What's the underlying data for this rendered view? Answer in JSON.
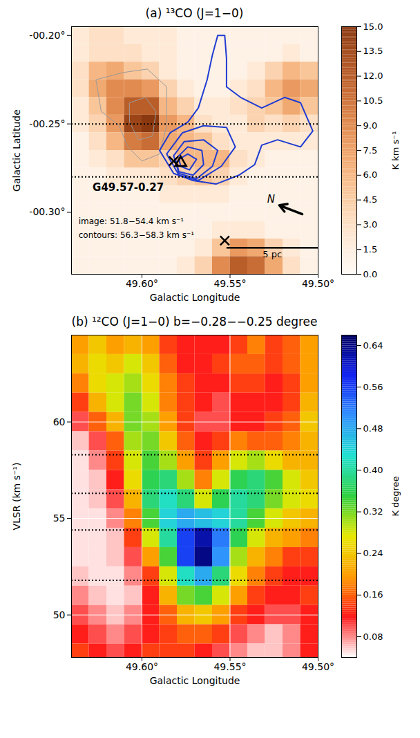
{
  "chart_data": [
    {
      "type": "heatmap",
      "title": "(a) ¹³CO (J=1−0)",
      "x_label": "Galactic Longitude",
      "y_label": "Galactic Latitude",
      "xlim": [
        49.64,
        49.5
      ],
      "xticks": [
        {
          "value": 49.6,
          "label": "49.60°"
        },
        {
          "value": 49.55,
          "label": "49.55°"
        },
        {
          "value": 49.5,
          "label": "49.50°"
        }
      ],
      "ylim": [
        -0.335,
        -0.195
      ],
      "yticks": [
        {
          "value": -0.2,
          "label": "-00.20°"
        },
        {
          "value": -0.25,
          "label": "-00.25°"
        },
        {
          "value": -0.3,
          "label": "-00.30°"
        }
      ],
      "cells": {
        "x": [
          49.635,
          49.625,
          49.615,
          49.605,
          49.595,
          49.585,
          49.575,
          49.565,
          49.555,
          49.545,
          49.535,
          49.525,
          49.515,
          49.505
        ],
        "y": [
          -0.2,
          -0.21,
          -0.22,
          -0.23,
          -0.24,
          -0.25,
          -0.26,
          -0.27,
          -0.28,
          -0.29,
          -0.3,
          -0.31,
          -0.32,
          -0.33
        ],
        "values": [
          [
            2,
            3,
            3,
            2,
            2,
            2,
            1,
            1,
            1,
            1,
            1,
            1,
            1,
            1
          ],
          [
            2,
            3,
            3,
            3,
            2,
            2,
            1,
            1,
            1,
            1,
            1,
            1,
            2,
            1
          ],
          [
            3,
            6,
            7,
            5,
            4,
            2,
            1,
            1,
            1,
            1,
            2,
            4,
            6,
            5
          ],
          [
            3,
            7,
            9,
            9,
            8,
            4,
            2,
            1,
            1,
            2,
            3,
            6,
            8,
            7
          ],
          [
            2,
            5,
            9,
            12,
            12,
            6,
            4,
            2,
            2,
            3,
            4,
            5,
            7,
            5
          ],
          [
            2,
            4,
            8,
            14,
            15,
            8,
            6,
            3,
            2,
            2,
            4,
            3,
            4,
            3
          ],
          [
            1,
            3,
            6,
            10,
            11,
            7,
            6,
            5,
            3,
            2,
            2,
            2,
            2,
            2
          ],
          [
            1,
            2,
            3,
            5,
            5,
            4,
            6,
            6,
            6,
            3,
            2,
            1,
            1,
            1
          ],
          [
            1,
            1,
            2,
            2,
            2,
            3,
            4,
            5,
            4,
            2,
            1,
            1,
            1,
            1
          ],
          [
            1,
            1,
            1,
            1,
            1,
            2,
            2,
            2,
            2,
            1,
            1,
            1,
            1,
            1
          ],
          [
            1,
            1,
            1,
            1,
            1,
            1,
            1,
            1,
            1,
            1,
            1,
            1,
            1,
            1
          ],
          [
            1,
            1,
            1,
            1,
            1,
            1,
            1,
            1,
            2,
            2,
            2,
            1,
            1,
            1
          ],
          [
            1,
            1,
            1,
            1,
            1,
            1,
            1,
            2,
            5,
            8,
            7,
            4,
            2,
            1
          ],
          [
            1,
            1,
            1,
            1,
            1,
            1,
            2,
            4,
            9,
            12,
            11,
            7,
            3,
            1
          ]
        ]
      },
      "colorbar": {
        "label": "K km s⁻¹",
        "lim": [
          0,
          15
        ],
        "ticks": [
          {
            "value": 0,
            "label": "0.0"
          },
          1.5,
          {
            "value": 3,
            "label": "3.0"
          },
          4.5,
          {
            "value": 6,
            "label": "6.0"
          },
          7.5,
          {
            "value": 9,
            "label": "9.0"
          },
          10.5,
          {
            "value": 12,
            "label": "12.0"
          },
          13.5,
          {
            "value": 15,
            "label": "15.0"
          }
        ]
      },
      "cell_contours": {
        "color": "#9a9a9a",
        "lines": [
          [
            [
              49.626,
              -0.225
            ],
            [
              49.611,
              -0.221
            ],
            [
              49.597,
              -0.219
            ],
            [
              49.586,
              -0.229
            ],
            [
              49.586,
              -0.251
            ],
            [
              49.59,
              -0.267
            ],
            [
              49.6,
              -0.271
            ],
            [
              49.608,
              -0.263
            ],
            [
              49.613,
              -0.251
            ],
            [
              49.623,
              -0.243
            ]
          ],
          [
            [
              49.607,
              -0.238
            ],
            [
              49.598,
              -0.235
            ],
            [
              49.592,
              -0.243
            ],
            [
              49.594,
              -0.257
            ],
            [
              49.602,
              -0.259
            ],
            [
              49.607,
              -0.249
            ]
          ]
        ]
      },
      "contours": {
        "color": "#1f3bd1",
        "lines": [
          [
            [
              49.59,
              -0.265
            ],
            [
              49.584,
              -0.255
            ],
            [
              49.574,
              -0.249
            ],
            [
              49.568,
              -0.241
            ],
            [
              49.563,
              -0.225
            ],
            [
              49.56,
              -0.211
            ],
            [
              49.557,
              -0.2
            ],
            [
              49.553,
              -0.2
            ],
            [
              49.552,
              -0.213
            ],
            [
              49.552,
              -0.229
            ],
            [
              49.544,
              -0.235
            ],
            [
              49.532,
              -0.241
            ],
            [
              49.519,
              -0.235
            ],
            [
              49.51,
              -0.238
            ],
            [
              49.503,
              -0.254
            ],
            [
              49.51,
              -0.263
            ],
            [
              49.523,
              -0.259
            ],
            [
              49.532,
              -0.262
            ],
            [
              49.536,
              -0.273
            ],
            [
              49.545,
              -0.279
            ],
            [
              49.558,
              -0.284
            ],
            [
              49.571,
              -0.282
            ],
            [
              49.582,
              -0.278
            ]
          ],
          [
            [
              49.586,
              -0.267
            ],
            [
              49.577,
              -0.255
            ],
            [
              49.565,
              -0.251
            ],
            [
              49.552,
              -0.252
            ],
            [
              49.547,
              -0.263
            ],
            [
              49.555,
              -0.274
            ],
            [
              49.568,
              -0.282
            ],
            [
              49.579,
              -0.279
            ]
          ],
          [
            [
              49.582,
              -0.268
            ],
            [
              49.576,
              -0.26
            ],
            [
              49.565,
              -0.259
            ],
            [
              49.557,
              -0.265
            ],
            [
              49.56,
              -0.274
            ],
            [
              49.569,
              -0.281
            ],
            [
              49.579,
              -0.278
            ]
          ],
          [
            [
              49.581,
              -0.27
            ],
            [
              49.574,
              -0.263
            ],
            [
              49.566,
              -0.265
            ],
            [
              49.565,
              -0.273
            ],
            [
              49.571,
              -0.279
            ],
            [
              49.579,
              -0.277
            ]
          ],
          [
            [
              49.579,
              -0.27
            ],
            [
              49.574,
              -0.267
            ],
            [
              49.569,
              -0.27
            ],
            [
              49.573,
              -0.276
            ],
            [
              49.578,
              -0.274
            ]
          ]
        ]
      },
      "b_lines": [
        -0.25,
        -0.28
      ],
      "sources": [
        {
          "x": 49.582,
          "y": -0.271,
          "marker": "x"
        },
        {
          "x": 49.578,
          "y": -0.272,
          "marker": "triangle"
        },
        {
          "x": 49.553,
          "y": -0.316,
          "marker": "x"
        }
      ],
      "source_label": {
        "text": "G49.57-0.27",
        "x": 49.628,
        "y": -0.286
      },
      "annotations": [
        {
          "text": "image: 51.8−54.4 km s⁻¹",
          "x": 49.636,
          "y": -0.305
        },
        {
          "text": "contours: 56.3−58.3 km s⁻¹",
          "x": 49.636,
          "y": -0.313
        }
      ],
      "scale_bar": {
        "label": "5 pc",
        "x1": 49.552,
        "x2": 49.5,
        "y": -0.32
      },
      "north": {
        "label": "N",
        "x1": 49.509,
        "y1": -0.301,
        "x2": 49.522,
        "y2": -0.296
      }
    },
    {
      "type": "heatmap",
      "title": "(b) ¹²CO (J=1−0) b=−0.28−−0.25 degree",
      "x_label": "Galactic Longitude",
      "y_label": "VLSR (km s⁻¹)",
      "xlim": [
        49.64,
        49.5
      ],
      "xticks": [
        {
          "value": 49.6,
          "label": "49.60°"
        },
        {
          "value": 49.55,
          "label": "49.55°"
        },
        {
          "value": 49.5,
          "label": "49.50°"
        }
      ],
      "ylim": [
        47.8,
        64.5
      ],
      "yticks": [
        50,
        55,
        60
      ],
      "grid": true,
      "cells": {
        "x": [
          49.635,
          49.625,
          49.615,
          49.605,
          49.595,
          49.585,
          49.575,
          49.565,
          49.555,
          49.545,
          49.535,
          49.525,
          49.515,
          49.505
        ],
        "y": [
          64,
          63,
          62,
          61,
          60,
          59,
          58,
          57,
          56,
          55,
          54,
          53,
          52,
          51,
          50,
          49,
          48
        ],
        "values": [
          [
            0.2,
            0.24,
            0.2,
            0.22,
            0.2,
            0.14,
            0.12,
            0.12,
            0.12,
            0.14,
            0.18,
            0.14,
            0.16,
            0.2
          ],
          [
            0.22,
            0.26,
            0.24,
            0.28,
            0.24,
            0.16,
            0.12,
            0.12,
            0.14,
            0.16,
            0.16,
            0.14,
            0.16,
            0.2
          ],
          [
            0.18,
            0.26,
            0.28,
            0.3,
            0.26,
            0.18,
            0.14,
            0.12,
            0.12,
            0.14,
            0.14,
            0.12,
            0.14,
            0.2
          ],
          [
            0.14,
            0.22,
            0.28,
            0.32,
            0.28,
            0.18,
            0.14,
            0.12,
            0.1,
            0.12,
            0.12,
            0.12,
            0.14,
            0.22
          ],
          [
            0.1,
            0.16,
            0.22,
            0.32,
            0.3,
            0.2,
            0.14,
            0.1,
            0.1,
            0.12,
            0.12,
            0.14,
            0.16,
            0.24
          ],
          [
            0.06,
            0.1,
            0.16,
            0.3,
            0.32,
            0.24,
            0.16,
            0.12,
            0.14,
            0.18,
            0.16,
            0.16,
            0.18,
            0.22
          ],
          [
            0.05,
            0.08,
            0.14,
            0.28,
            0.34,
            0.3,
            0.2,
            0.14,
            0.2,
            0.28,
            0.3,
            0.26,
            0.22,
            0.22
          ],
          [
            0.05,
            0.06,
            0.12,
            0.26,
            0.36,
            0.38,
            0.3,
            0.18,
            0.28,
            0.36,
            0.38,
            0.34,
            0.28,
            0.24
          ],
          [
            0.05,
            0.06,
            0.1,
            0.22,
            0.38,
            0.42,
            0.38,
            0.28,
            0.36,
            0.4,
            0.38,
            0.32,
            0.28,
            0.26
          ],
          [
            0.05,
            0.05,
            0.08,
            0.18,
            0.34,
            0.44,
            0.48,
            0.46,
            0.44,
            0.4,
            0.34,
            0.28,
            0.24,
            0.22
          ],
          [
            0.05,
            0.05,
            0.06,
            0.14,
            0.28,
            0.4,
            0.56,
            0.62,
            0.52,
            0.36,
            0.28,
            0.22,
            0.2,
            0.18
          ],
          [
            0.05,
            0.05,
            0.06,
            0.1,
            0.2,
            0.34,
            0.56,
            0.64,
            0.5,
            0.3,
            0.22,
            0.18,
            0.14,
            0.14
          ],
          [
            0.06,
            0.05,
            0.05,
            0.08,
            0.14,
            0.28,
            0.42,
            0.48,
            0.38,
            0.26,
            0.18,
            0.14,
            0.12,
            0.12
          ],
          [
            0.08,
            0.06,
            0.05,
            0.06,
            0.12,
            0.22,
            0.32,
            0.34,
            0.28,
            0.2,
            0.14,
            0.12,
            0.12,
            0.14
          ],
          [
            0.1,
            0.08,
            0.06,
            0.08,
            0.12,
            0.16,
            0.22,
            0.24,
            0.2,
            0.14,
            0.12,
            0.1,
            0.1,
            0.12
          ],
          [
            0.12,
            0.1,
            0.08,
            0.1,
            0.12,
            0.14,
            0.16,
            0.16,
            0.14,
            0.1,
            0.08,
            0.06,
            0.08,
            0.12
          ],
          [
            0.14,
            0.12,
            0.1,
            0.12,
            0.14,
            0.14,
            0.14,
            0.12,
            0.1,
            0.08,
            0.06,
            0.06,
            0.08,
            0.12
          ]
        ]
      },
      "colorbar": {
        "label": "K degree",
        "lim": [
          0.04,
          0.66
        ],
        "ticks": [
          0.08,
          0.16,
          0.24,
          0.32,
          {
            "value": 0.4,
            "label": "0.40"
          },
          0.48,
          0.56,
          0.64
        ]
      },
      "velocity_lines": [
        51.8,
        54.4,
        56.3,
        58.3
      ]
    }
  ]
}
